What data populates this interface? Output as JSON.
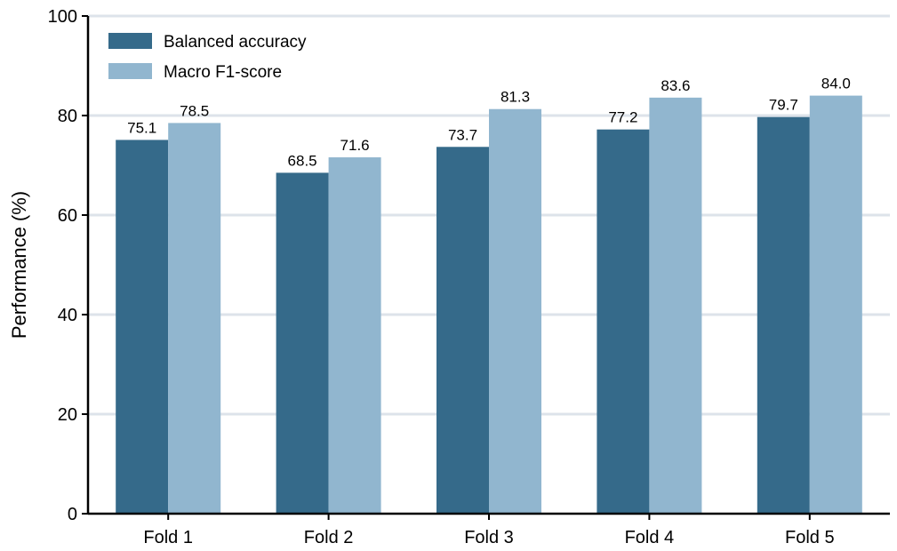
{
  "chart_data": {
    "type": "bar",
    "title": "",
    "xlabel": "",
    "ylabel": "Performance (%)",
    "categories": [
      "Fold 1",
      "Fold 2",
      "Fold 3",
      "Fold 4",
      "Fold 5"
    ],
    "series": [
      {
        "name": "Balanced accuracy",
        "values": [
          75.1,
          68.5,
          73.7,
          77.2,
          79.7
        ],
        "labels": [
          "75.1",
          "68.5",
          "73.7",
          "77.2",
          "79.7"
        ],
        "color": "#356a8a"
      },
      {
        "name": "Macro F1-score",
        "values": [
          78.5,
          71.6,
          81.3,
          83.6,
          84.0
        ],
        "labels": [
          "78.5",
          "71.6",
          "81.3",
          "83.6",
          "84.0"
        ],
        "color": "#91b6cf"
      }
    ],
    "ylim": [
      0,
      100
    ],
    "yticks": [
      "0",
      "20",
      "40",
      "60",
      "80",
      "100"
    ],
    "grid": true,
    "grid_color": "#dde3ea",
    "legend_position": "top-left"
  }
}
